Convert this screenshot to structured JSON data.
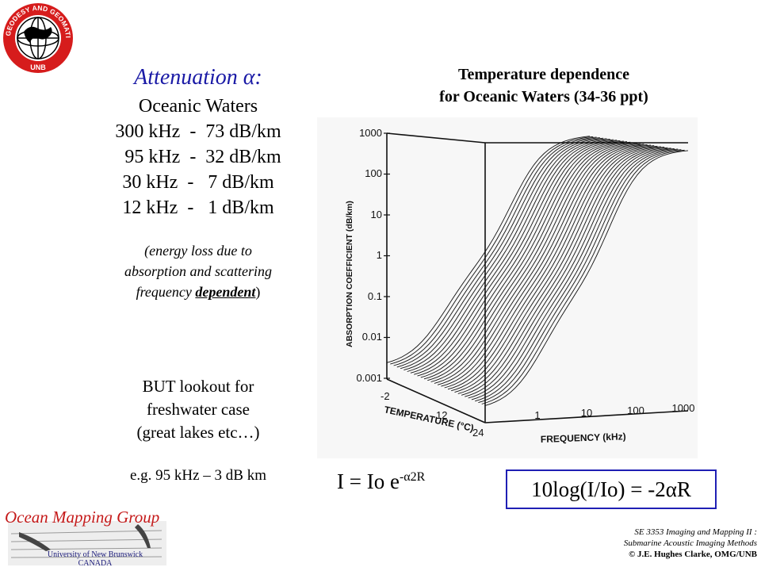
{
  "logo": {
    "ring_text": "GEODESY AND GEOMATICS ENGINEERING",
    "bottom_text": "UNB",
    "ring_color": "#d61c1c"
  },
  "left": {
    "title": "Attenuation α:",
    "lines": [
      "Oceanic Waters",
      "300 kHz  -  73 dB/km",
      "  95 kHz  -  32 dB/km",
      "30 kHz  -   7 dB/km",
      "12 kHz  -   1 dB/km"
    ],
    "note_line1": "(energy loss due to",
    "note_line2": "absorption and scattering",
    "note_line3_pre": "frequency ",
    "note_line3_bold": "dependent",
    "note_line3_post": ")",
    "but_lines": [
      "BUT lookout for",
      "freshwater case",
      "(great lakes etc…)"
    ],
    "example": "e.g. 95 kHz – 3 dB km"
  },
  "right": {
    "title_line1": "Temperature dependence",
    "title_line2": "for Oceanic Waters (34-36 ppt)"
  },
  "plot": {
    "y_axis_label": "ABSORPTION COEFFICIENT (dB/km)",
    "y_ticks": [
      "1000",
      "100",
      "10",
      "1",
      "0.1",
      "0.01",
      "0.001"
    ],
    "temp_label": "TEMPERATURE (°C)",
    "temp_ticks": [
      "-2",
      "12",
      "24"
    ],
    "freq_label": "FREQUENCY (kHz)",
    "freq_ticks": [
      "1",
      "10",
      "100",
      "1000"
    ]
  },
  "formulas": {
    "f1_base": "I = Io e",
    "f1_exp": "-α2R",
    "f2": "10log(I/Io) = -2αR",
    "box_color": "#1f1fb4"
  },
  "omg": {
    "title": "Ocean Mapping Group",
    "uni_line1": "University of New Brunswick",
    "uni_line2": "CANADA",
    "title_color": "#c51a1a"
  },
  "footer": {
    "line1": "SE 3353 Imaging and Mapping II :",
    "line2": "Submarine Acoustic Imaging Methods",
    "line3": "© J.E. Hughes Clarke, OMG/UNB"
  }
}
